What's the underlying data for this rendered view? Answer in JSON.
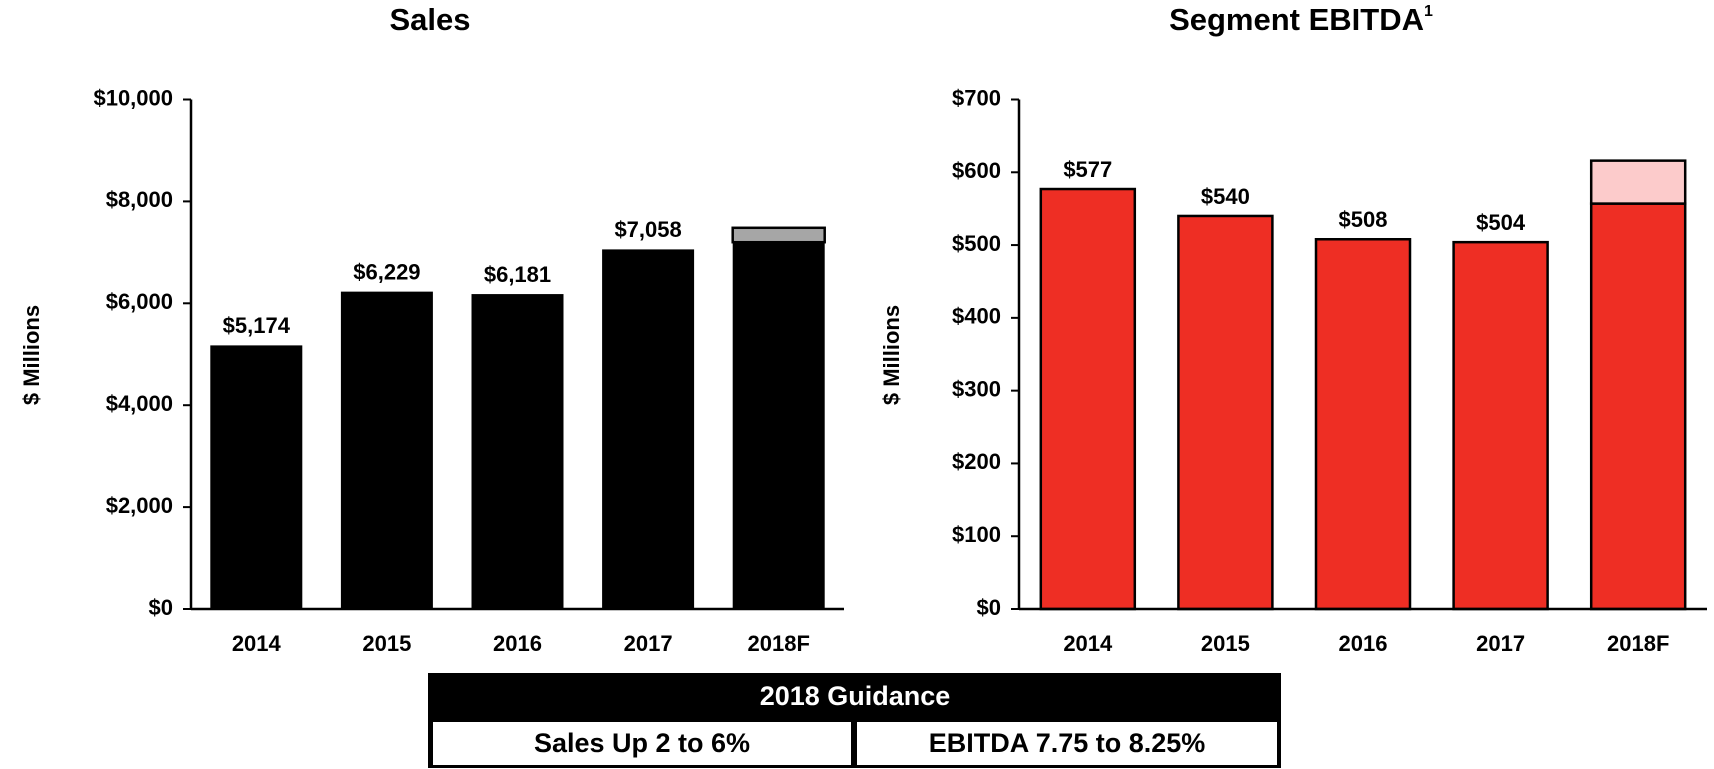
{
  "chart_data": [
    {
      "type": "bar",
      "title": "Sales",
      "y_label": "$ Millions",
      "categories": [
        "2014",
        "2015",
        "2016",
        "2017",
        "2018F"
      ],
      "series": [
        {
          "color": "#000000",
          "values": [
            5174,
            6229,
            6181,
            7058,
            7199
          ],
          "value_labels": [
            "$5,174",
            "$6,229",
            "$6,181",
            "$7,058",
            null
          ]
        },
        {
          "color": "#a6a6a6",
          "values": [
            null,
            null,
            null,
            null,
            283
          ]
        }
      ],
      "ylim": [
        0,
        10000
      ],
      "yticks": [
        {
          "value": 0,
          "label": "$0"
        },
        {
          "value": 2000,
          "label": "$2,000"
        },
        {
          "value": 4000,
          "label": "$4,000"
        },
        {
          "value": 6000,
          "label": "$6,000"
        },
        {
          "value": 8000,
          "label": "$8,000"
        },
        {
          "value": 10000,
          "label": "$10,000"
        }
      ]
    },
    {
      "type": "bar",
      "title": "Segment EBITDA",
      "title_note": "1",
      "y_label": "$ Millions",
      "categories": [
        "2014",
        "2015",
        "2016",
        "2017",
        "2018F"
      ],
      "series": [
        {
          "color": "#ee2e24",
          "values": [
            577,
            540,
            508,
            504,
            557
          ],
          "value_labels": [
            "$577",
            "$540",
            "$508",
            "$504",
            null
          ]
        },
        {
          "color": "#fccbcb",
          "values": [
            null,
            null,
            null,
            null,
            59
          ]
        }
      ],
      "ylim": [
        0,
        700
      ],
      "yticks": [
        {
          "value": 0,
          "label": "$0"
        },
        {
          "value": 100,
          "label": "$100"
        },
        {
          "value": 200,
          "label": "$200"
        },
        {
          "value": 300,
          "label": "$300"
        },
        {
          "value": 400,
          "label": "$400"
        },
        {
          "value": 500,
          "label": "$500"
        },
        {
          "value": 600,
          "label": "$600"
        },
        {
          "value": 700,
          "label": "$700"
        }
      ]
    }
  ],
  "table": {
    "header": "2018 Guidance",
    "cells": [
      "Sales Up 2 to 6%",
      "EBITDA 7.75 to 8.25%"
    ]
  }
}
